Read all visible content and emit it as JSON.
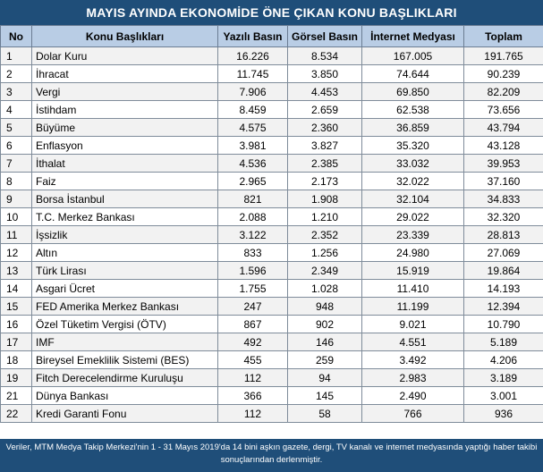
{
  "title": "MAYIS AYINDA EKONOMİDE ÖNE ÇIKAN KONU BAŞLIKLARI",
  "headers": [
    "No",
    "Konu Başlıkları",
    "Yazılı Basın",
    "Görsel Basın",
    "İnternet Medyası",
    "Toplam"
  ],
  "rows": [
    [
      "1",
      "Dolar Kuru",
      "16.226",
      "8.534",
      "167.005",
      "191.765"
    ],
    [
      "2",
      "İhracat",
      "11.745",
      "3.850",
      "74.644",
      "90.239"
    ],
    [
      "3",
      "Vergi",
      "7.906",
      "4.453",
      "69.850",
      "82.209"
    ],
    [
      "4",
      "İstihdam",
      "8.459",
      "2.659",
      "62.538",
      "73.656"
    ],
    [
      "5",
      "Büyüme",
      "4.575",
      "2.360",
      "36.859",
      "43.794"
    ],
    [
      "6",
      "Enflasyon",
      "3.981",
      "3.827",
      "35.320",
      "43.128"
    ],
    [
      "7",
      "İthalat",
      "4.536",
      "2.385",
      "33.032",
      "39.953"
    ],
    [
      "8",
      "Faiz",
      "2.965",
      "2.173",
      "32.022",
      "37.160"
    ],
    [
      "9",
      "Borsa İstanbul",
      "821",
      "1.908",
      "32.104",
      "34.833"
    ],
    [
      "10",
      "T.C. Merkez Bankası",
      "2.088",
      "1.210",
      "29.022",
      "32.320"
    ],
    [
      "11",
      "İşsizlik",
      "3.122",
      "2.352",
      "23.339",
      "28.813"
    ],
    [
      "12",
      "Altın",
      "833",
      "1.256",
      "24.980",
      "27.069"
    ],
    [
      "13",
      "Türk Lirası",
      "1.596",
      "2.349",
      "15.919",
      "19.864"
    ],
    [
      "14",
      "Asgari Ücret",
      "1.755",
      "1.028",
      "11.410",
      "14.193"
    ],
    [
      "15",
      "FED Amerika Merkez Bankası",
      "247",
      "948",
      "11.199",
      "12.394"
    ],
    [
      "16",
      "Özel Tüketim Vergisi (ÖTV)",
      "867",
      "902",
      "9.021",
      "10.790"
    ],
    [
      "17",
      "IMF",
      "492",
      "146",
      "4.551",
      "5.189"
    ],
    [
      "18",
      "Bireysel Emeklilik Sistemi (BES)",
      "455",
      "259",
      "3.492",
      "4.206"
    ],
    [
      "19",
      "Fitch Derecelendirme Kuruluşu",
      "112",
      "94",
      "2.983",
      "3.189"
    ],
    [
      "21",
      "Dünya Bankası",
      "366",
      "145",
      "2.490",
      "3.001"
    ],
    [
      "22",
      "Kredi Garanti Fonu",
      "112",
      "58",
      "766",
      "936"
    ]
  ],
  "footer": "Veriler, MTM Medya Takip Merkezi'nin 1 - 31 Mayıs 2019'da 14 bini aşkın gazete, dergi, TV kanalı ve internet medyasında yaptığı haber takibi sonuçlarından derlenmiştir.",
  "colors": {
    "header_bar": "#1f4e79",
    "column_header": "#b9cde5",
    "stripe": "#f2f2f2"
  }
}
